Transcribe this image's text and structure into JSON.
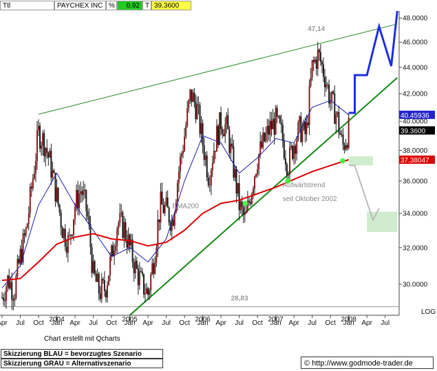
{
  "header": {
    "symbol": "Ttl",
    "name": "PAYCHEX INC",
    "pct_label": "%",
    "change": "0.92",
    "type_label": "T",
    "price": "39.3600",
    "colors": {
      "change_bg": "#22cc22",
      "price_bg": "#ffff44"
    }
  },
  "footer": {
    "credit": "Chart erstellt mit Qcharts",
    "legend_blue": "Skizzierung BLAU = bevorzugtes Szenario",
    "legend_grey": "Skizzierung GRAU = Alternativszenario",
    "copyright_symbol": "©",
    "source": "http://www.godmode-trader.de"
  },
  "chart_data": {
    "type": "candlestick",
    "x_start": "2003-04",
    "x_end": "2008-09",
    "ylim": [
      28.4,
      48.6
    ],
    "yaxis_ticks": [
      "30.0000",
      "32.0000",
      "34.0000",
      "36.0000",
      "38.0000",
      "40.0000",
      "42.0000",
      "44.0000",
      "46.0000",
      "48.0000"
    ],
    "log_label": "LOG",
    "x_ticks": [
      {
        "t": "2003-04",
        "label": "Apr"
      },
      {
        "t": "2003-07",
        "label": "Jul"
      },
      {
        "t": "2003-10",
        "label": "Oct"
      },
      {
        "t": "2004-01",
        "label": "Jan"
      },
      {
        "t": "2004-04",
        "label": "Apr"
      },
      {
        "t": "2004-07",
        "label": "Jul"
      },
      {
        "t": "2004-10",
        "label": "Oct"
      },
      {
        "t": "2005-01",
        "label": "Jan"
      },
      {
        "t": "2005-04",
        "label": "Apr"
      },
      {
        "t": "2005-07",
        "label": "Jul"
      },
      {
        "t": "2005-10",
        "label": "Oct"
      },
      {
        "t": "2006-01",
        "label": "Jan"
      },
      {
        "t": "2006-04",
        "label": "Apr"
      },
      {
        "t": "2006-07",
        "label": "Jul"
      },
      {
        "t": "2006-10",
        "label": "Oct"
      },
      {
        "t": "2007-01",
        "label": "Jan"
      },
      {
        "t": "2007-04",
        "label": "Apr"
      },
      {
        "t": "2007-07",
        "label": "Jul"
      },
      {
        "t": "2007-10",
        "label": "Oct"
      },
      {
        "t": "2008-01",
        "label": "Jan"
      },
      {
        "t": "2008-04",
        "label": "Apr"
      },
      {
        "t": "2008-07",
        "label": "Jul"
      }
    ],
    "year_labels": [
      {
        "t": "2004-01",
        "label": "2004"
      },
      {
        "t": "2005-01",
        "label": "2005"
      },
      {
        "t": "2006-01",
        "label": "2006"
      },
      {
        "t": "2007-01",
        "label": "2007"
      },
      {
        "t": "2008-01",
        "label": "2008"
      }
    ],
    "price_path": [
      [
        "2003-04",
        29.3
      ],
      [
        "2003-05",
        30.3
      ],
      [
        "2003-06",
        29.6
      ],
      [
        "2003-07",
        31.5
      ],
      [
        "2003-08",
        33.0
      ],
      [
        "2003-09",
        36.0
      ],
      [
        "2003-10",
        39.2
      ],
      [
        "2003-11",
        38.5
      ],
      [
        "2003-12",
        37.0
      ],
      [
        "2004-01",
        35.0
      ],
      [
        "2004-02",
        33.0
      ],
      [
        "2004-03",
        32.2
      ],
      [
        "2004-04",
        34.5
      ],
      [
        "2004-05",
        35.5
      ],
      [
        "2004-06",
        34.0
      ],
      [
        "2004-07",
        30.5
      ],
      [
        "2004-08",
        29.6
      ],
      [
        "2004-09",
        29.8
      ],
      [
        "2004-10",
        31.5
      ],
      [
        "2004-11",
        33.5
      ],
      [
        "2004-12",
        33.2
      ],
      [
        "2005-01",
        32.0
      ],
      [
        "2005-02",
        30.8
      ],
      [
        "2005-03",
        30.0
      ],
      [
        "2005-04",
        29.5
      ],
      [
        "2005-05",
        31.5
      ],
      [
        "2005-06",
        34.5
      ],
      [
        "2005-07",
        34.2
      ],
      [
        "2005-08",
        33.5
      ],
      [
        "2005-09",
        36.5
      ],
      [
        "2005-10",
        39.0
      ],
      [
        "2005-11",
        42.0
      ],
      [
        "2005-12",
        41.0
      ],
      [
        "2006-01",
        38.5
      ],
      [
        "2006-02",
        36.3
      ],
      [
        "2006-03",
        38.5
      ],
      [
        "2006-04",
        40.0
      ],
      [
        "2006-05",
        39.5
      ],
      [
        "2006-06",
        37.0
      ],
      [
        "2006-07",
        34.5
      ],
      [
        "2006-08",
        33.5
      ],
      [
        "2006-09",
        35.5
      ],
      [
        "2006-10",
        37.5
      ],
      [
        "2006-11",
        38.5
      ],
      [
        "2006-12",
        39.5
      ],
      [
        "2007-01",
        40.0
      ],
      [
        "2007-02",
        39.0
      ],
      [
        "2007-03",
        37.0
      ],
      [
        "2007-04",
        38.5
      ],
      [
        "2007-05",
        39.5
      ],
      [
        "2007-06",
        39.0
      ],
      [
        "2007-07",
        44.0
      ],
      [
        "2007-08",
        45.0
      ],
      [
        "2007-09",
        43.5
      ],
      [
        "2007-10",
        41.5
      ],
      [
        "2007-11",
        40.5
      ],
      [
        "2007-12",
        38.2
      ],
      [
        "2008-01",
        39.36
      ]
    ],
    "ema200_path": [
      [
        "2003-04",
        30.2
      ],
      [
        "2003-07",
        30.3
      ],
      [
        "2003-10",
        31.2
      ],
      [
        "2004-01",
        32.2
      ],
      [
        "2004-04",
        32.6
      ],
      [
        "2004-07",
        32.8
      ],
      [
        "2004-10",
        32.5
      ],
      [
        "2005-01",
        32.4
      ],
      [
        "2005-04",
        32.1
      ],
      [
        "2005-07",
        32.3
      ],
      [
        "2005-10",
        33.0
      ],
      [
        "2006-01",
        34.0
      ],
      [
        "2006-04",
        34.6
      ],
      [
        "2006-07",
        34.8
      ],
      [
        "2006-10",
        35.2
      ],
      [
        "2007-01",
        35.6
      ],
      [
        "2007-04",
        36.1
      ],
      [
        "2007-07",
        36.6
      ],
      [
        "2007-10",
        37.0
      ],
      [
        "2008-01",
        37.38
      ]
    ],
    "sma_path": [
      [
        "2003-04",
        29.8
      ],
      [
        "2003-07",
        31.0
      ],
      [
        "2003-10",
        34.5
      ],
      [
        "2004-01",
        36.5
      ],
      [
        "2004-04",
        34.5
      ],
      [
        "2004-07",
        33.0
      ],
      [
        "2004-10",
        31.5
      ],
      [
        "2005-01",
        32.0
      ],
      [
        "2005-04",
        31.2
      ],
      [
        "2005-07",
        32.5
      ],
      [
        "2005-10",
        36.0
      ],
      [
        "2006-01",
        39.0
      ],
      [
        "2006-04",
        38.5
      ],
      [
        "2006-07",
        36.5
      ],
      [
        "2006-10",
        37.5
      ],
      [
        "2007-01",
        38.8
      ],
      [
        "2007-04",
        38.5
      ],
      [
        "2007-07",
        41.0
      ],
      [
        "2007-10",
        41.5
      ],
      [
        "2008-01",
        40.46
      ]
    ],
    "trendlines": [
      {
        "name": "upper-channel",
        "color": "#228822",
        "points": [
          [
            "2003-10",
            40.5
          ],
          [
            "2008-09",
            47.5
          ]
        ]
      },
      {
        "name": "uptrend",
        "color": "#118811",
        "points": [
          [
            "2005-01",
            28.4
          ],
          [
            "2008-09",
            43.2
          ]
        ]
      }
    ],
    "hline": {
      "y": 28.83,
      "label": "28,83"
    },
    "high_label": {
      "t": "2007-07",
      "y": 47.14,
      "label": "47,14"
    },
    "touch_points": [
      [
        "2006-08",
        34.6
      ],
      [
        "2007-03",
        36.0
      ],
      [
        "2007-12",
        37.3
      ]
    ],
    "annotations": [
      {
        "t": "2005-08",
        "y": 34.3,
        "label": "EMA200"
      },
      {
        "t": "2007-01",
        "y": 35.6,
        "label": "Aufwärtstrend"
      },
      {
        "t": "2007-01",
        "y": 34.75,
        "label": "seit Oktober 2002"
      }
    ],
    "scenario_blue": [
      [
        "2008-01",
        40.6
      ],
      [
        "2008-02",
        40.6
      ],
      [
        "2008-02",
        43.4
      ],
      [
        "2008-04",
        43.4
      ],
      [
        "2008-06",
        47.3
      ],
      [
        "2008-08",
        44.1
      ],
      [
        "2008-09",
        48.6
      ]
    ],
    "scenario_grey": [
      [
        "2008-01",
        37.0
      ],
      [
        "2008-02",
        37.0
      ],
      [
        "2008-05",
        33.6
      ],
      [
        "2008-06",
        34.3
      ]
    ],
    "zones": [
      {
        "t0": "2008-01",
        "t1": "2008-05",
        "y0": 37.0,
        "y1": 37.6
      },
      {
        "t0": "2008-04",
        "t1": "2008-09",
        "y0": 32.9,
        "y1": 34.1
      }
    ],
    "price_labels": [
      {
        "y": 40.45936,
        "label": "40.45936",
        "bg": "#2222cc",
        "fg": "#ffffff"
      },
      {
        "y": 39.36,
        "label": "39.3600",
        "bg": "#000000",
        "fg": "#ffffff"
      },
      {
        "y": 37.38047,
        "label": "37.38047",
        "bg": "#dd0000",
        "fg": "#ffffff"
      }
    ],
    "colors": {
      "candle": "#1a1a1a",
      "candle_up": "#8b1a1a",
      "ema": "#dd0000",
      "sma": "#1a1aaa",
      "blue": "#1a2ee6",
      "grey": "#bbbbbb",
      "zone": "#cfeccf",
      "touch": "#33ff33",
      "grid": "#cccccc"
    }
  }
}
